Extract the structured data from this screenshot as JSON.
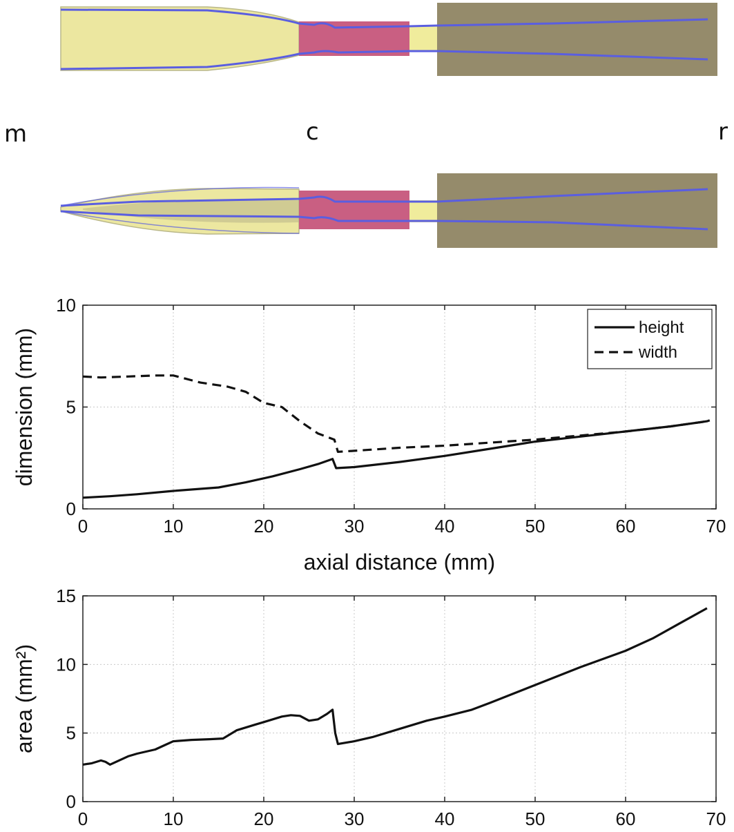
{
  "labels": {
    "m": "m",
    "c": "c",
    "r": "r"
  },
  "colors": {
    "mouth": "#ece7a0",
    "constriction": "#c95f82",
    "gap": "#f0ec9c",
    "rear": "#958b6b",
    "outline": "#5a5ee0"
  },
  "chart_data": [
    {
      "type": "line",
      "title": "",
      "xlabel": "axial distance (mm)",
      "ylabel": "dimension (mm)",
      "xlim": [
        0,
        70
      ],
      "ylim": [
        0,
        10
      ],
      "xticks": [
        0,
        10,
        20,
        30,
        40,
        50,
        60,
        70
      ],
      "yticks": [
        0,
        5,
        10
      ],
      "grid": true,
      "legend": "top-right",
      "series": [
        {
          "name": "height",
          "style": "solid",
          "x": [
            0,
            3,
            6,
            10,
            15,
            18,
            21,
            24,
            26,
            27.6,
            28,
            30,
            35,
            40,
            45,
            50,
            55,
            60,
            65,
            69,
            69.3
          ],
          "y": [
            0.55,
            0.62,
            0.72,
            0.88,
            1.05,
            1.3,
            1.6,
            1.95,
            2.2,
            2.45,
            2.0,
            2.05,
            2.3,
            2.6,
            2.95,
            3.3,
            3.55,
            3.8,
            4.05,
            4.3,
            4.35
          ]
        },
        {
          "name": "width",
          "style": "dashed",
          "x": [
            0,
            2,
            5,
            8,
            10,
            13,
            16,
            18,
            20,
            22,
            24,
            26,
            27.8,
            28.2,
            30,
            35,
            40,
            45,
            50,
            55,
            60,
            65,
            69
          ],
          "y": [
            6.5,
            6.45,
            6.5,
            6.55,
            6.55,
            6.2,
            6.0,
            5.75,
            5.2,
            5.0,
            4.3,
            3.7,
            3.4,
            2.8,
            2.85,
            3.0,
            3.1,
            3.25,
            3.4,
            3.6,
            3.8,
            4.05,
            4.3
          ]
        }
      ]
    },
    {
      "type": "line",
      "title": "",
      "xlabel": "",
      "ylabel": "area (mm²)",
      "xlim": [
        0,
        70
      ],
      "ylim": [
        0,
        15
      ],
      "xticks": [
        0,
        10,
        20,
        30,
        40,
        50,
        60,
        70
      ],
      "yticks": [
        0,
        5,
        10,
        15
      ],
      "grid": true,
      "series": [
        {
          "name": "area",
          "style": "solid",
          "x": [
            0,
            1,
            2,
            2.5,
            3,
            4,
            5,
            6,
            8,
            9,
            10,
            12,
            14,
            15.5,
            17,
            19,
            20,
            21,
            22,
            23,
            24,
            25,
            26,
            27,
            27.6,
            27.9,
            28.2,
            30,
            32,
            35,
            38,
            40,
            43,
            45,
            50,
            55,
            60,
            63,
            66,
            69
          ],
          "y": [
            2.7,
            2.8,
            3.0,
            2.9,
            2.7,
            3.0,
            3.3,
            3.5,
            3.8,
            4.1,
            4.4,
            4.5,
            4.55,
            4.6,
            5.2,
            5.6,
            5.8,
            6.0,
            6.2,
            6.3,
            6.25,
            5.9,
            6.0,
            6.4,
            6.7,
            5.0,
            4.2,
            4.4,
            4.7,
            5.3,
            5.9,
            6.2,
            6.7,
            7.2,
            8.5,
            9.8,
            11.0,
            11.9,
            13.0,
            14.1
          ]
        }
      ]
    }
  ]
}
